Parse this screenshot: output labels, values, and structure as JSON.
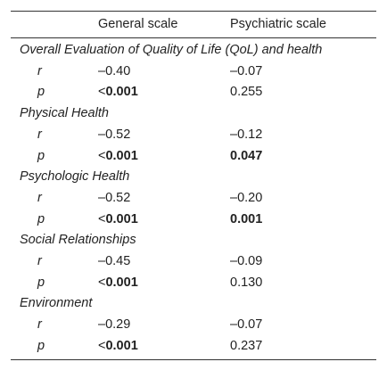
{
  "header": {
    "general": "General scale",
    "psychiatric": "Psychiatric scale"
  },
  "sections": [
    {
      "title": "Overall Evaluation of Quality of Life (QoL) and health",
      "rows": [
        {
          "label": "r",
          "general": {
            "text": "–0.40",
            "bold": false
          },
          "psychiatric": {
            "text": "–0.07",
            "bold": false
          }
        },
        {
          "label": "p",
          "general": {
            "prefix": "<",
            "text": "0.001",
            "bold": true
          },
          "psychiatric": {
            "text": "0.255",
            "bold": false
          }
        }
      ]
    },
    {
      "title": "Physical Health",
      "rows": [
        {
          "label": "r",
          "general": {
            "text": "–0.52",
            "bold": false
          },
          "psychiatric": {
            "text": "–0.12",
            "bold": false
          }
        },
        {
          "label": "p",
          "general": {
            "prefix": "<",
            "text": "0.001",
            "bold": true
          },
          "psychiatric": {
            "text": "0.047",
            "bold": true
          }
        }
      ]
    },
    {
      "title": "Psychologic Health",
      "rows": [
        {
          "label": "r",
          "general": {
            "text": "–0.52",
            "bold": false
          },
          "psychiatric": {
            "text": "–0.20",
            "bold": false
          }
        },
        {
          "label": "p",
          "general": {
            "prefix": "<",
            "text": "0.001",
            "bold": true
          },
          "psychiatric": {
            "text": "0.001",
            "bold": true
          }
        }
      ]
    },
    {
      "title": "Social Relationships",
      "rows": [
        {
          "label": "r",
          "general": {
            "text": "–0.45",
            "bold": false
          },
          "psychiatric": {
            "text": "–0.09",
            "bold": false
          }
        },
        {
          "label": "p",
          "general": {
            "prefix": "<",
            "text": "0.001",
            "bold": true
          },
          "psychiatric": {
            "text": "0.130",
            "bold": false
          }
        }
      ]
    },
    {
      "title": "Environment",
      "rows": [
        {
          "label": "r",
          "general": {
            "text": "–0.29",
            "bold": false
          },
          "psychiatric": {
            "text": "–0.07",
            "bold": false
          }
        },
        {
          "label": "p",
          "general": {
            "prefix": "<",
            "text": "0.001",
            "bold": true
          },
          "psychiatric": {
            "text": "0.237",
            "bold": false
          }
        }
      ]
    }
  ]
}
